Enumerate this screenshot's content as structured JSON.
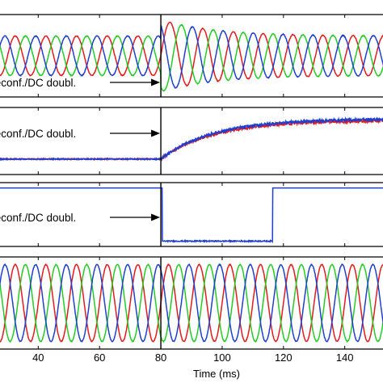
{
  "chart_data": {
    "type": "line",
    "xlabel": "Time (ms)",
    "xlim": [
      27,
      153
    ],
    "x_ticks": [
      40,
      60,
      80,
      100,
      120,
      140
    ],
    "x_tick_labels": [
      "40",
      "60",
      "80",
      "100",
      "120",
      "140"
    ],
    "event_time": 80,
    "annotation": "Reconf./DC doubl.",
    "colors": {
      "phase_a": "#e41a1c",
      "phase_b": "#22cc22",
      "phase_c": "#1f3fcf",
      "black": "#000000"
    },
    "panels": [
      {
        "id": "top",
        "series": [
          {
            "color_key": "phase_a",
            "model": "three_phase",
            "phase_deg": 0
          },
          {
            "color_key": "phase_b",
            "model": "three_phase",
            "phase_deg": -120
          },
          {
            "color_key": "phase_c",
            "model": "three_phase",
            "phase_deg": 120
          }
        ],
        "period_ms": 10,
        "amplitude_pre": 0.55,
        "amplitude_post_peak": 1.0,
        "amplitude_post_final": 0.55,
        "ylim": [
          -1.15,
          1.15
        ]
      },
      {
        "id": "second",
        "series": [
          {
            "color_key": "phase_a",
            "model": "step_rise",
            "level_pre": 0.0,
            "level_post": 0.75
          },
          {
            "color_key": "phase_c",
            "model": "step_rise",
            "level_pre": 0.0,
            "level_post": 0.78
          }
        ],
        "ylim": [
          -0.3,
          1.0
        ]
      },
      {
        "id": "third",
        "series": [
          {
            "color_key": "phase_c",
            "model": "pulse",
            "level_high": 1.0,
            "level_low": 0.0,
            "low_from": 80.5,
            "low_to": 116.5
          }
        ],
        "ylim": [
          -0.1,
          1.1
        ]
      },
      {
        "id": "bottom",
        "series": [
          {
            "color_key": "phase_a",
            "model": "sine",
            "phase_deg": 0
          },
          {
            "color_key": "phase_b",
            "model": "sine",
            "phase_deg": -120
          },
          {
            "color_key": "phase_c",
            "model": "sine",
            "phase_deg": 120
          }
        ],
        "period_ms": 10,
        "amplitude": 1.0,
        "ylim": [
          -1.2,
          1.2
        ]
      }
    ]
  }
}
